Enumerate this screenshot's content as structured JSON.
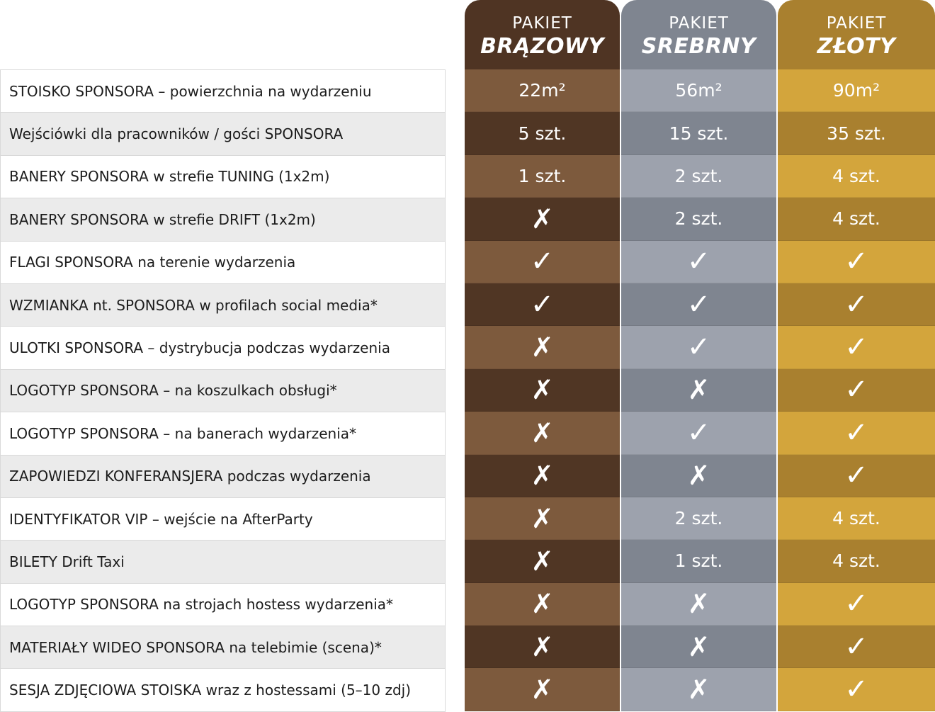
{
  "headers": [
    {
      "sub": "PAKIET",
      "main": "BRĄZOWY"
    },
    {
      "sub": "PAKIET",
      "main": "SREBRNY"
    },
    {
      "sub": "PAKIET",
      "main": "ZŁOTY"
    }
  ],
  "colors": {
    "brown_light": "#7d5a3d",
    "brown_dark": "#503624",
    "silver_light": "#9da2ad",
    "silver_dark": "#7f8590",
    "gold_light": "#d3a53c",
    "gold_dark": "#a9802f"
  },
  "icons": {
    "yes": "check-icon",
    "no": "cross-icon"
  },
  "rows": [
    {
      "label": "STOISKO SPONSORA – powierzchnia na wydarzeniu",
      "values": [
        "22m²",
        "56m²",
        "90m²"
      ]
    },
    {
      "label": "Wejściówki dla pracowników / gości SPONSORA",
      "values": [
        "5 szt.",
        "15 szt.",
        "35 szt."
      ]
    },
    {
      "label": "BANERY SPONSORA w strefie TUNING (1x2m)",
      "values": [
        "1 szt.",
        "2 szt.",
        "4 szt."
      ]
    },
    {
      "label": "BANERY SPONSORA w strefie DRIFT (1x2m)",
      "values": [
        "no",
        "2 szt.",
        "4 szt."
      ]
    },
    {
      "label": "FLAGI SPONSORA na terenie wydarzenia",
      "values": [
        "yes",
        "yes",
        "yes"
      ]
    },
    {
      "label": "WZMIANKA nt. SPONSORA w profilach social media*",
      "values": [
        "yes",
        "yes",
        "yes"
      ]
    },
    {
      "label": "ULOTKI SPONSORA – dystrybucja podczas wydarzenia",
      "values": [
        "no",
        "yes",
        "yes"
      ]
    },
    {
      "label": "LOGOTYP SPONSORA – na koszulkach obsługi*",
      "values": [
        "no",
        "no",
        "yes"
      ]
    },
    {
      "label": "LOGOTYP SPONSORA – na banerach wydarzenia*",
      "values": [
        "no",
        "yes",
        "yes"
      ]
    },
    {
      "label": "ZAPOWIEDZI KONFERANSJERA podczas wydarzenia",
      "values": [
        "no",
        "no",
        "yes"
      ]
    },
    {
      "label": "IDENTYFIKATOR VIP – wejście na AfterParty",
      "values": [
        "no",
        "2 szt.",
        "4 szt."
      ]
    },
    {
      "label": "BILETY Drift Taxi",
      "values": [
        "no",
        "1 szt.",
        "4 szt."
      ]
    },
    {
      "label": "LOGOTYP SPONSORA na strojach hostess wydarzenia*",
      "values": [
        "no",
        "no",
        "yes"
      ]
    },
    {
      "label": "MATERIAŁY WIDEO SPONSORA na telebimie (scena)*",
      "values": [
        "no",
        "no",
        "yes"
      ]
    },
    {
      "label": "SESJA ZDJĘCIOWA STOISKA wraz z hostessami (5–10 zdj)",
      "values": [
        "no",
        "no",
        "yes"
      ]
    }
  ]
}
